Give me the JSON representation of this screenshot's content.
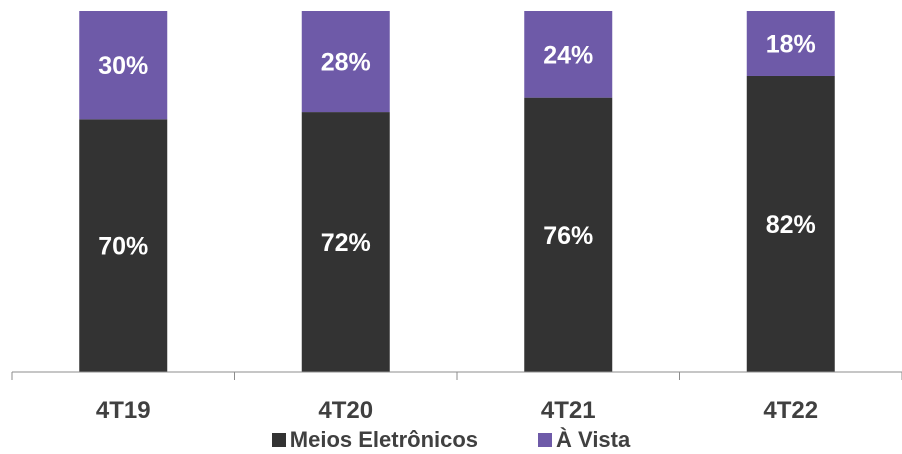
{
  "chart_data": {
    "type": "bar",
    "stacked": true,
    "categories": [
      "4T19",
      "4T20",
      "4T21",
      "4T22"
    ],
    "series": [
      {
        "name": "Meios Eletrônicos",
        "values": [
          70,
          72,
          76,
          82
        ],
        "labels": [
          "70%",
          "72%",
          "76%",
          "82%"
        ],
        "color": "#333333"
      },
      {
        "name": "À Vista",
        "values": [
          30,
          28,
          24,
          18
        ],
        "labels": [
          "30%",
          "28%",
          "24%",
          "18%"
        ],
        "color": "#6e5aa8"
      }
    ],
    "ylim": [
      0,
      100
    ],
    "grid": false,
    "legend_position": "bottom"
  }
}
